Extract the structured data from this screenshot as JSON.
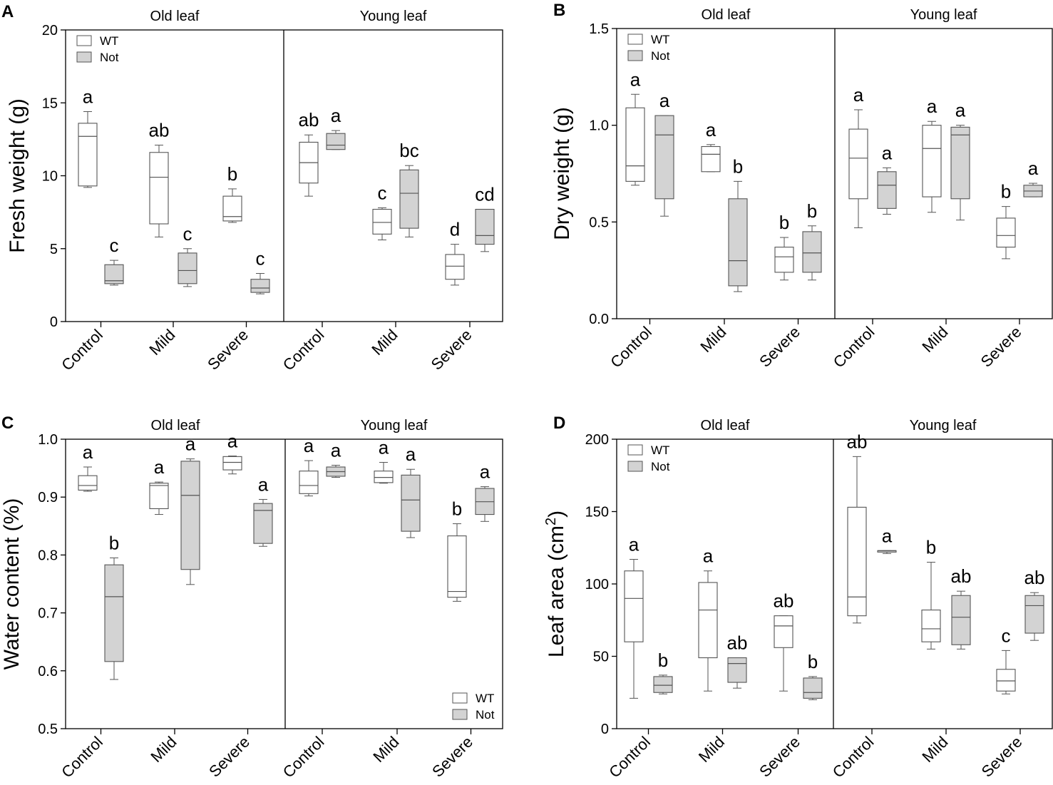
{
  "figure": {
    "group_labels": [
      "Control",
      "Mild",
      "Severe",
      "Control",
      "Mild",
      "Severe"
    ],
    "section_labels": [
      "Old leaf",
      "Young leaf"
    ],
    "legend": [
      {
        "name": "WT",
        "color": "#ffffff"
      },
      {
        "name": "Not",
        "color": "#d3d3d3"
      }
    ]
  },
  "chart_data": [
    {
      "type": "box",
      "panel": "A",
      "ylabel": "Fresh weight (g)",
      "ylim": [
        0,
        20
      ],
      "yticks": [
        0,
        5,
        10,
        15,
        20
      ],
      "sections": [
        "Old leaf",
        "Young leaf"
      ],
      "legend_position": "top-left",
      "categories": [
        "Control",
        "Mild",
        "Severe",
        "Control",
        "Mild",
        "Severe"
      ],
      "series": [
        {
          "name": "WT",
          "color": "#ffffff",
          "boxes": [
            {
              "min": 9.2,
              "q1": 9.3,
              "median": 12.7,
              "q3": 13.6,
              "max": 14.4,
              "letter": "a"
            },
            {
              "min": 5.8,
              "q1": 6.7,
              "median": 9.9,
              "q3": 11.6,
              "max": 12.1,
              "letter": "ab"
            },
            {
              "min": 6.8,
              "q1": 6.9,
              "median": 7.2,
              "q3": 8.6,
              "max": 9.1,
              "letter": "b"
            },
            {
              "min": 8.6,
              "q1": 9.5,
              "median": 10.9,
              "q3": 12.3,
              "max": 12.8,
              "letter": "ab"
            },
            {
              "min": 5.6,
              "q1": 6.0,
              "median": 6.8,
              "q3": 7.7,
              "max": 7.8,
              "letter": "c"
            },
            {
              "min": 2.5,
              "q1": 2.9,
              "median": 3.8,
              "q3": 4.6,
              "max": 5.3,
              "letter": "d"
            }
          ]
        },
        {
          "name": "Not",
          "color": "#d3d3d3",
          "boxes": [
            {
              "min": 2.5,
              "q1": 2.6,
              "median": 2.8,
              "q3": 3.9,
              "max": 4.2,
              "letter": "c"
            },
            {
              "min": 2.4,
              "q1": 2.6,
              "median": 3.5,
              "q3": 4.7,
              "max": 5.0,
              "letter": "c"
            },
            {
              "min": 1.9,
              "q1": 2.0,
              "median": 2.3,
              "q3": 2.9,
              "max": 3.3,
              "letter": "c"
            },
            {
              "min": 11.8,
              "q1": 11.8,
              "median": 12.1,
              "q3": 12.9,
              "max": 13.1,
              "letter": "a"
            },
            {
              "min": 5.8,
              "q1": 6.4,
              "median": 8.8,
              "q3": 10.4,
              "max": 10.7,
              "letter": "bc"
            },
            {
              "min": 4.8,
              "q1": 5.3,
              "median": 5.9,
              "q3": 7.7,
              "max": 7.7,
              "letter": "cd"
            }
          ]
        }
      ]
    },
    {
      "type": "box",
      "panel": "B",
      "ylabel": "Dry weight (g)",
      "ylim": [
        0,
        1.5
      ],
      "yticks": [
        0.0,
        0.5,
        1.0,
        1.5
      ],
      "sections": [
        "Old leaf",
        "Young leaf"
      ],
      "legend_position": "top-left",
      "categories": [
        "Control",
        "Mild",
        "Severe",
        "Control",
        "Mild",
        "Severe"
      ],
      "series": [
        {
          "name": "WT",
          "color": "#ffffff",
          "boxes": [
            {
              "min": 0.69,
              "q1": 0.71,
              "median": 0.79,
              "q3": 1.09,
              "max": 1.16,
              "letter": "a"
            },
            {
              "min": 0.76,
              "q1": 0.76,
              "median": 0.85,
              "q3": 0.89,
              "max": 0.9,
              "letter": "a"
            },
            {
              "min": 0.2,
              "q1": 0.24,
              "median": 0.32,
              "q3": 0.37,
              "max": 0.42,
              "letter": "b"
            },
            {
              "min": 0.47,
              "q1": 0.62,
              "median": 0.83,
              "q3": 0.98,
              "max": 1.08,
              "letter": "a"
            },
            {
              "min": 0.55,
              "q1": 0.63,
              "median": 0.88,
              "q3": 1.0,
              "max": 1.02,
              "letter": "a"
            },
            {
              "min": 0.31,
              "q1": 0.37,
              "median": 0.43,
              "q3": 0.52,
              "max": 0.58,
              "letter": "b"
            }
          ]
        },
        {
          "name": "Not",
          "color": "#d3d3d3",
          "boxes": [
            {
              "min": 0.53,
              "q1": 0.62,
              "median": 0.95,
              "q3": 1.05,
              "max": 1.05,
              "letter": "a"
            },
            {
              "min": 0.14,
              "q1": 0.17,
              "median": 0.3,
              "q3": 0.62,
              "max": 0.71,
              "letter": "b"
            },
            {
              "min": 0.2,
              "q1": 0.24,
              "median": 0.34,
              "q3": 0.45,
              "max": 0.48,
              "letter": "b"
            },
            {
              "min": 0.54,
              "q1": 0.57,
              "median": 0.69,
              "q3": 0.76,
              "max": 0.78,
              "letter": "a"
            },
            {
              "min": 0.51,
              "q1": 0.62,
              "median": 0.95,
              "q3": 0.99,
              "max": 1.0,
              "letter": "a"
            },
            {
              "min": 0.63,
              "q1": 0.63,
              "median": 0.66,
              "q3": 0.69,
              "max": 0.7,
              "letter": "a"
            }
          ]
        }
      ]
    },
    {
      "type": "box",
      "panel": "C",
      "ylabel": "Water content (%)",
      "ylim": [
        0.5,
        1.0
      ],
      "yticks": [
        0.5,
        0.6,
        0.7,
        0.8,
        0.9,
        1.0
      ],
      "sections": [
        "Old leaf",
        "Young leaf"
      ],
      "legend_position": "bottom-right",
      "categories": [
        "Control",
        "Mild",
        "Severe",
        "Control",
        "Mild",
        "Severe"
      ],
      "series": [
        {
          "name": "WT",
          "color": "#ffffff",
          "boxes": [
            {
              "min": 0.91,
              "q1": 0.912,
              "median": 0.92,
              "q3": 0.937,
              "max": 0.952,
              "letter": "a"
            },
            {
              "min": 0.87,
              "q1": 0.88,
              "median": 0.92,
              "q3": 0.924,
              "max": 0.926,
              "letter": "a"
            },
            {
              "min": 0.94,
              "q1": 0.947,
              "median": 0.96,
              "q3": 0.97,
              "max": 0.971,
              "letter": "a"
            },
            {
              "min": 0.902,
              "q1": 0.906,
              "median": 0.92,
              "q3": 0.945,
              "max": 0.963,
              "letter": "a"
            },
            {
              "min": 0.924,
              "q1": 0.925,
              "median": 0.934,
              "q3": 0.945,
              "max": 0.96,
              "letter": "a"
            },
            {
              "min": 0.72,
              "q1": 0.727,
              "median": 0.737,
              "q3": 0.833,
              "max": 0.854,
              "letter": "b"
            }
          ]
        },
        {
          "name": "Not",
          "color": "#d3d3d3",
          "boxes": [
            {
              "min": 0.585,
              "q1": 0.616,
              "median": 0.728,
              "q3": 0.783,
              "max": 0.795,
              "letter": "b"
            },
            {
              "min": 0.749,
              "q1": 0.775,
              "median": 0.903,
              "q3": 0.962,
              "max": 0.966,
              "letter": "a"
            },
            {
              "min": 0.815,
              "q1": 0.82,
              "median": 0.877,
              "q3": 0.889,
              "max": 0.896,
              "letter": "a"
            },
            {
              "min": 0.934,
              "q1": 0.936,
              "median": 0.944,
              "q3": 0.952,
              "max": 0.955,
              "letter": "a"
            },
            {
              "min": 0.83,
              "q1": 0.841,
              "median": 0.895,
              "q3": 0.938,
              "max": 0.948,
              "letter": "a"
            },
            {
              "min": 0.858,
              "q1": 0.87,
              "median": 0.892,
              "q3": 0.915,
              "max": 0.918,
              "letter": "a"
            }
          ]
        }
      ]
    },
    {
      "type": "box",
      "panel": "D",
      "ylabel": "Leaf area (cm²)",
      "ylim": [
        0,
        200
      ],
      "yticks": [
        0,
        50,
        100,
        150,
        200
      ],
      "sections": [
        "Old leaf",
        "Young leaf"
      ],
      "legend_position": "top-left",
      "categories": [
        "Control",
        "Mild",
        "Severe",
        "Control",
        "Mild",
        "Severe"
      ],
      "series": [
        {
          "name": "WT",
          "color": "#ffffff",
          "boxes": [
            {
              "min": 21,
              "q1": 60,
              "median": 90,
              "q3": 109,
              "max": 117,
              "letter": "a"
            },
            {
              "min": 26,
              "q1": 49,
              "median": 82,
              "q3": 101,
              "max": 109,
              "letter": "a"
            },
            {
              "min": 26,
              "q1": 56,
              "median": 71,
              "q3": 78,
              "max": 78,
              "letter": "ab"
            },
            {
              "min": 73,
              "q1": 78,
              "median": 91,
              "q3": 153,
              "max": 188,
              "letter": "ab"
            },
            {
              "min": 55,
              "q1": 60,
              "median": 69,
              "q3": 82,
              "max": 115,
              "letter": "b"
            },
            {
              "min": 24,
              "q1": 26,
              "median": 33,
              "q3": 41,
              "max": 54,
              "letter": "c"
            }
          ]
        },
        {
          "name": "Not",
          "color": "#d3d3d3",
          "boxes": [
            {
              "min": 24,
              "q1": 25,
              "median": 30,
              "q3": 36,
              "max": 37,
              "letter": "b"
            },
            {
              "min": 28,
              "q1": 32,
              "median": 45,
              "q3": 49,
              "max": 49,
              "letter": "ab"
            },
            {
              "min": 20,
              "q1": 21,
              "median": 25,
              "q3": 35,
              "max": 36,
              "letter": "b"
            },
            {
              "min": 121,
              "q1": 122,
              "median": 123,
              "q3": 123,
              "max": 123,
              "letter": "a"
            },
            {
              "min": 55,
              "q1": 58,
              "median": 77,
              "q3": 92,
              "max": 95,
              "letter": "ab"
            },
            {
              "min": 61,
              "q1": 66,
              "median": 85,
              "q3": 92,
              "max": 94,
              "letter": "ab"
            }
          ]
        }
      ]
    }
  ]
}
